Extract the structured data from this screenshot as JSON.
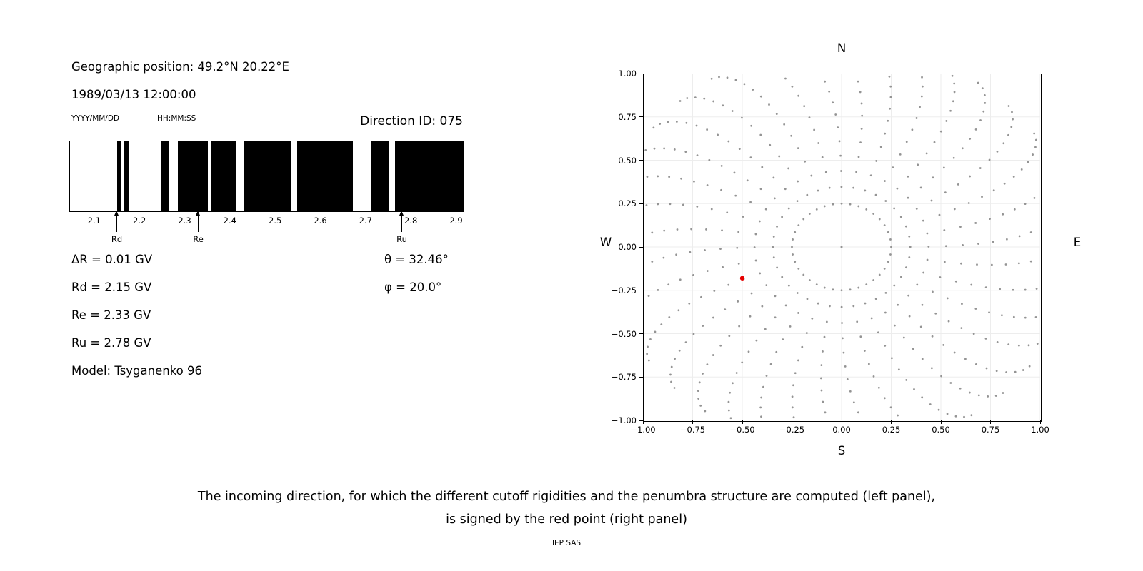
{
  "left_panel": {
    "geo_position": "Geographic position: 49.2°N 20.22°E",
    "datetime": "1989/03/13 12:00:00",
    "date_format_label": "YYYY/MM/DD",
    "time_format_label": "HH:MM:SS",
    "direction_id_label": "Direction ID: 075",
    "delta_r": "ΔR = 0.01 GV",
    "rd": "Rd = 2.15 GV",
    "re": "Re = 2.33 GV",
    "ru": "Ru = 2.78 GV",
    "model": "Model: Tsyganenko 96",
    "theta": "θ = 32.46°",
    "phi": "φ = 20.0°"
  },
  "right_panel": {
    "north": "N",
    "south": "S",
    "east": "E",
    "west": "W"
  },
  "caption": {
    "line1": "The incoming direction, for which the different cutoff rigidities and the penumbra structure are computed (left panel),",
    "line2": "is signed by the red point (right panel)",
    "credit": "IEP SAS"
  },
  "chart_data": [
    {
      "type": "bar",
      "title": "",
      "xlabel": "",
      "ylabel": "",
      "xlim": [
        2.045,
        2.915
      ],
      "xticks": [
        2.1,
        2.2,
        2.3,
        2.4,
        2.5,
        2.6,
        2.7,
        2.8,
        2.9
      ],
      "bands_gv": [
        [
          2.149,
          2.158
        ],
        [
          2.163,
          2.174
        ],
        [
          2.246,
          2.265
        ],
        [
          2.284,
          2.349
        ],
        [
          2.358,
          2.413
        ],
        [
          2.429,
          2.533
        ],
        [
          2.547,
          2.67
        ],
        [
          2.711,
          2.75
        ],
        [
          2.763,
          2.915
        ]
      ],
      "markers": [
        {
          "label": "Rd",
          "value_gv": 2.15
        },
        {
          "label": "Re",
          "value_gv": 2.33
        },
        {
          "label": "Ru",
          "value_gv": 2.78
        }
      ],
      "bar_color": "#000000"
    },
    {
      "type": "scatter",
      "title": "",
      "xlim": [
        -1,
        1
      ],
      "ylim": [
        -1,
        1
      ],
      "xticks": [
        -1,
        -0.75,
        -0.5,
        -0.25,
        0,
        0.25,
        0.5,
        0.75,
        1
      ],
      "yticks": [
        -1,
        -0.75,
        -0.5,
        -0.25,
        0,
        0.25,
        0.5,
        0.75,
        1
      ],
      "grid": true,
      "grid_color": "#ededed",
      "dot_color": "#949494",
      "direction_grid": {
        "azimuth_start_deg": 0,
        "azimuth_step_deg": 10,
        "azimuth_count": 36,
        "points_per_spoke": 16,
        "r_inner": 0.25,
        "r_outer": 1.17,
        "tip_bend_deg": -14,
        "center_point": [
          0,
          0
        ]
      },
      "selected_point": {
        "x": -0.5,
        "y": -0.18,
        "color": "#e60000"
      }
    }
  ]
}
